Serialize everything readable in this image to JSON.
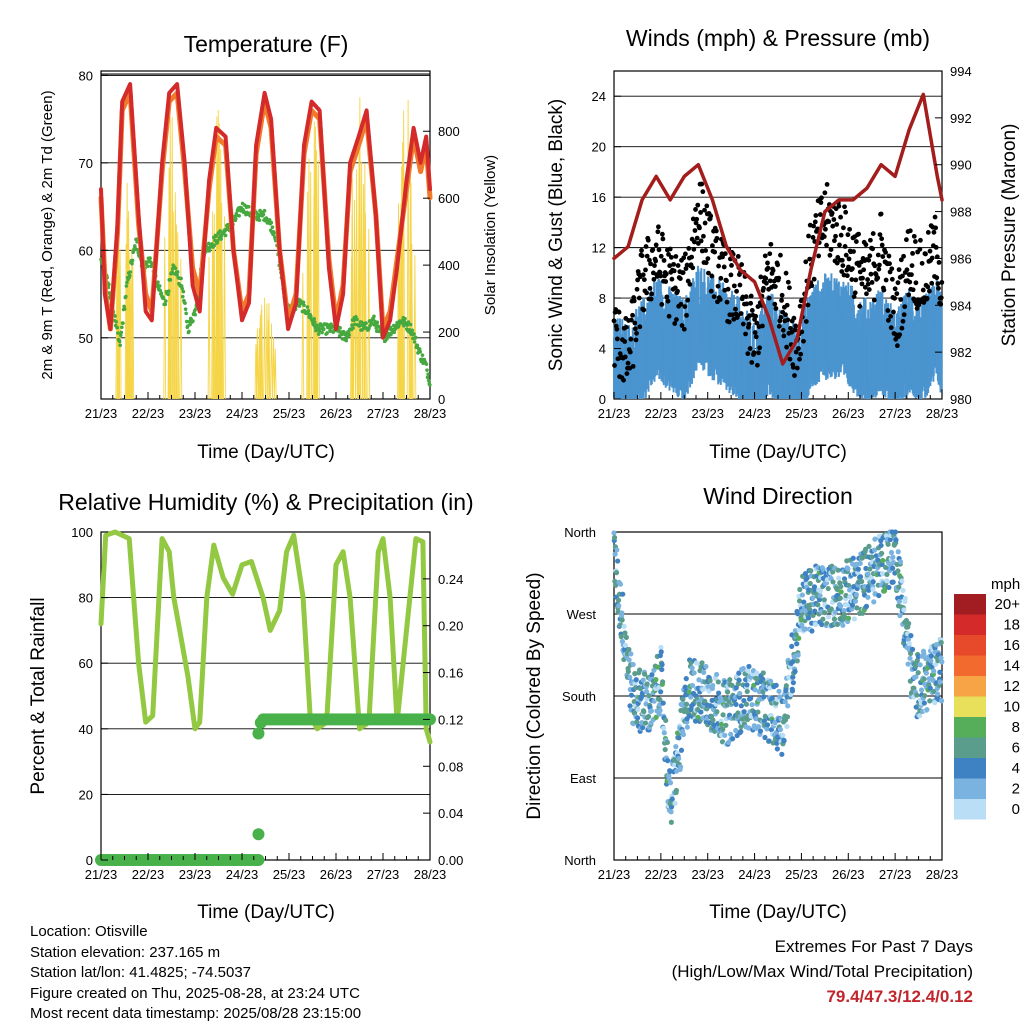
{
  "time_ticks": [
    "21/23",
    "22/23",
    "23/23",
    "24/23",
    "25/23",
    "26/23",
    "27/23",
    "28/23"
  ],
  "time_xlabel": "Time (Day/UTC)",
  "chart_data": [
    {
      "type": "line",
      "title": "Temperature (F)",
      "xlabel": "Time (Day/UTC)",
      "ylabel_left": "2m & 9m T (Red, Orange) & 2m Td (Green)",
      "ylabel_right": "Solar Insolation (Yellow)",
      "ylim_left": [
        43,
        80.5
      ],
      "yticks_left": [
        "50",
        "60",
        "70",
        "80"
      ],
      "ylim_right": [
        0,
        980
      ],
      "yticks_right": [
        "0",
        "200",
        "400",
        "600",
        "800"
      ],
      "x_unit": "days since 21/23",
      "series": [
        {
          "name": "2m T",
          "color": "#d42a2a",
          "axis": "left",
          "x": [
            0,
            0.08,
            0.2,
            0.35,
            0.45,
            0.62,
            0.8,
            0.95,
            1.08,
            1.3,
            1.45,
            1.62,
            1.78,
            1.95,
            2.1,
            2.3,
            2.45,
            2.65,
            2.82,
            3.0,
            3.15,
            3.3,
            3.48,
            3.62,
            3.8,
            3.98,
            4.15,
            4.32,
            4.48,
            4.65,
            4.85,
            5.0,
            5.15,
            5.3,
            5.48,
            5.65,
            5.85,
            6.0,
            6.15,
            6.3,
            6.5,
            6.65,
            6.8,
            6.92,
            7.0
          ],
          "y": [
            67,
            55,
            51,
            63,
            77,
            79,
            64,
            53,
            52,
            70,
            78,
            79,
            70,
            56,
            53,
            68,
            74,
            73,
            60,
            52,
            54,
            72,
            78,
            75,
            60,
            51,
            54,
            72,
            77,
            76,
            58,
            51,
            55,
            70,
            73,
            76,
            64,
            50,
            52,
            58,
            68,
            74,
            70,
            73,
            67
          ]
        },
        {
          "name": "9m T",
          "color": "#f07a2c",
          "axis": "left",
          "x": [
            0,
            0.1,
            0.2,
            0.35,
            0.45,
            0.62,
            0.8,
            0.95,
            1.08,
            1.3,
            1.45,
            1.62,
            1.78,
            1.95,
            2.1,
            2.3,
            2.45,
            2.65,
            2.82,
            3.0,
            3.15,
            3.3,
            3.48,
            3.62,
            3.8,
            3.98,
            4.15,
            4.32,
            4.48,
            4.65,
            4.85,
            5.0,
            5.15,
            5.3,
            5.48,
            5.65,
            5.85,
            6.0,
            6.15,
            6.3,
            6.5,
            6.65,
            6.8,
            6.92,
            7.0
          ],
          "y": [
            66,
            55,
            51,
            62,
            76,
            78,
            63,
            55,
            53,
            69,
            77,
            78,
            69,
            58,
            55,
            67,
            73,
            72,
            60,
            53,
            55,
            71,
            77,
            74,
            60,
            52,
            55,
            71,
            76,
            75,
            59,
            52,
            56,
            69,
            72,
            75,
            64,
            51,
            53,
            59,
            67,
            73,
            69,
            72,
            66
          ]
        },
        {
          "name": "2m Td",
          "color": "#46a940",
          "axis": "left",
          "x": [
            0,
            0.2,
            0.4,
            0.55,
            0.75,
            0.9,
            1.05,
            1.2,
            1.35,
            1.55,
            1.72,
            1.85,
            2.0,
            2.2,
            2.4,
            2.6,
            2.8,
            3.0,
            3.25,
            3.5,
            3.7,
            3.9,
            4.0,
            4.2,
            4.4,
            4.6,
            4.8,
            5.0,
            5.2,
            5.4,
            5.6,
            5.8,
            6.0,
            6.2,
            6.4,
            6.6,
            6.8,
            6.9,
            7.0
          ],
          "y": [
            59,
            55,
            49,
            56,
            61,
            58,
            59,
            56,
            54,
            58,
            56,
            51,
            53,
            60,
            61,
            62,
            63,
            65,
            64,
            64,
            62,
            55,
            53,
            54,
            53,
            51,
            51,
            51,
            50,
            52,
            51,
            52,
            50,
            51,
            52,
            51,
            48,
            47,
            45
          ]
        },
        {
          "name": "Solar Insolation",
          "color": "#f5d547",
          "axis": "right",
          "style": "thin-daily-peaks",
          "peaks": [
            [
              0.5,
              680
            ],
            [
              1.5,
              900
            ],
            [
              2.5,
              880
            ],
            [
              3.5,
              330
            ],
            [
              4.5,
              900
            ],
            [
              5.5,
              970
            ],
            [
              6.5,
              920
            ]
          ]
        }
      ]
    },
    {
      "type": "scatter",
      "title": "Winds (mph) & Pressure (mb)",
      "xlabel": "Time (Day/UTC)",
      "ylabel_left": "Sonic Wind & Gust (Blue, Black)",
      "ylabel_right": "Station Pressure (Maroon)",
      "ylim_left": [
        0,
        26
      ],
      "yticks_left": [
        "0",
        "4",
        "8",
        "12",
        "16",
        "20",
        "24"
      ],
      "ylim_right": [
        980,
        994
      ],
      "yticks_right": [
        "980",
        "982",
        "984",
        "986",
        "988",
        "990",
        "992",
        "994"
      ],
      "x_unit": "days since 21/23",
      "series": [
        {
          "name": "Sonic Wind",
          "color": "#4b94cf",
          "axis": "left",
          "style": "dense-band",
          "x": [
            0,
            0.3,
            0.6,
            0.9,
            1.2,
            1.5,
            1.8,
            2.1,
            2.4,
            2.7,
            3.0,
            3.3,
            3.6,
            3.9,
            4.2,
            4.5,
            4.8,
            5.1,
            5.4,
            5.7,
            6.0,
            6.3,
            6.6,
            6.9,
            7.0
          ],
          "y": [
            2,
            1,
            3,
            5,
            4,
            3,
            6,
            5,
            4,
            3,
            1,
            4,
            2,
            1,
            4,
            5,
            5,
            4,
            3,
            4,
            2,
            4,
            3,
            5,
            3
          ]
        },
        {
          "name": "Gust",
          "color": "#000000",
          "axis": "left",
          "style": "dense-dots",
          "x": [
            0,
            0.3,
            0.6,
            0.9,
            1.2,
            1.5,
            1.8,
            2.1,
            2.4,
            2.7,
            3.0,
            3.3,
            3.6,
            3.9,
            4.2,
            4.5,
            4.8,
            5.1,
            5.4,
            5.7,
            6.0,
            6.3,
            6.6,
            6.9,
            7.0
          ],
          "y": [
            4,
            2,
            8,
            10,
            8,
            7,
            14,
            10,
            8,
            7,
            3,
            9,
            7,
            3,
            10,
            13,
            12,
            10,
            8,
            11,
            5,
            10,
            8,
            11,
            6
          ]
        },
        {
          "name": "Station Pressure",
          "color": "#a31d1d",
          "axis": "right",
          "x": [
            0,
            0.3,
            0.6,
            0.9,
            1.2,
            1.5,
            1.8,
            2.1,
            2.4,
            2.7,
            3.0,
            3.3,
            3.6,
            3.9,
            4.2,
            4.5,
            4.8,
            5.1,
            5.4,
            5.7,
            6.0,
            6.3,
            6.6,
            6.9,
            7.0
          ],
          "y": [
            986,
            986.5,
            988.5,
            989.5,
            988.5,
            989.5,
            990,
            988.5,
            986.5,
            985.5,
            985,
            983.5,
            981.5,
            982.5,
            985.5,
            988,
            988.5,
            988.5,
            989,
            990,
            989.5,
            991.5,
            993,
            989.5,
            988.5
          ]
        }
      ]
    },
    {
      "type": "line",
      "title": "Relative Humidity (%) & Precipitation (in)",
      "xlabel": "Time (Day/UTC)",
      "ylabel_left": "Percent & Total Rainfall",
      "ylim_left": [
        0,
        100
      ],
      "yticks_left": [
        "0",
        "20",
        "40",
        "60",
        "80",
        "100"
      ],
      "ylim_right": [
        0,
        0.28
      ],
      "yticks_right": [
        "0.00",
        "0.04",
        "0.08",
        "0.12",
        "0.16",
        "0.20",
        "0.24"
      ],
      "x_unit": "days since 21/23",
      "series": [
        {
          "name": "Relative Humidity",
          "color": "#93c842",
          "axis": "left",
          "x": [
            0,
            0.1,
            0.3,
            0.6,
            0.8,
            0.95,
            1.1,
            1.3,
            1.45,
            1.55,
            1.7,
            1.85,
            2.0,
            2.1,
            2.25,
            2.4,
            2.6,
            2.8,
            3.0,
            3.2,
            3.45,
            3.6,
            3.8,
            3.95,
            4.1,
            4.3,
            4.45,
            4.6,
            4.8,
            5.0,
            5.15,
            5.3,
            5.5,
            5.7,
            5.9,
            6.0,
            6.15,
            6.3,
            6.5,
            6.7,
            6.85,
            6.92,
            7.0
          ],
          "y": [
            72,
            99,
            100,
            98,
            60,
            42,
            44,
            98,
            94,
            80,
            68,
            56,
            40,
            42,
            80,
            96,
            86,
            81,
            90,
            91,
            80,
            70,
            76,
            94,
            99,
            80,
            44,
            40,
            42,
            90,
            94,
            80,
            40,
            42,
            94,
            98,
            80,
            42,
            70,
            98,
            97,
            40,
            36
          ]
        },
        {
          "name": "Total Precipitation",
          "color": "#48b14a",
          "axis": "right",
          "x": [
            0,
            3.35,
            3.35,
            3.42,
            7.0
          ],
          "y": [
            0,
            0,
            0.11,
            0.12,
            0.12
          ]
        }
      ]
    },
    {
      "type": "scatter",
      "title": "Wind Direction",
      "xlabel": "Time (Day/UTC)",
      "ylabel": "Direction (Colored By Speed)",
      "yticks": [
        "North",
        "East",
        "South",
        "West",
        "North"
      ],
      "ylim": [
        0,
        360
      ],
      "legend_title": "mph",
      "legend_labels": [
        "20+",
        "18",
        "16",
        "14",
        "12",
        "10",
        "8",
        "6",
        "4",
        "2",
        "0"
      ],
      "legend_colors": [
        "#a11d21",
        "#d42a2a",
        "#e64a2a",
        "#f26a2d",
        "#f6a446",
        "#e8e05a",
        "#56ad5a",
        "#5b9d8d",
        "#3f82c4",
        "#7bb3e0",
        "#b9def5"
      ],
      "x_unit": "days since 21/23",
      "x": [
        0,
        0.4,
        0.8,
        1.0,
        1.2,
        1.6,
        2.0,
        2.4,
        2.8,
        3.2,
        3.6,
        4.0,
        4.4,
        4.8,
        5.2,
        5.6,
        6.0,
        6.4,
        6.8,
        7.0
      ],
      "direction": [
        330,
        180,
        170,
        200,
        60,
        190,
        180,
        160,
        180,
        170,
        150,
        280,
        290,
        290,
        300,
        320,
        340,
        190,
        200,
        210
      ]
    }
  ],
  "info": {
    "location": "Location: Otisville",
    "elevation": "Station elevation: 237.165 m",
    "latlon": "Station lat/lon: 41.4825; -74.5037",
    "created": "Figure created on Thu, 2025-08-28, at 23:24 UTC",
    "latest": "Most recent data timestamp: 2025/08/28 23:15:00"
  },
  "extremes": {
    "heading": "Extremes For Past 7 Days",
    "subheading": "(High/Low/Max Wind/Total Precipitation)",
    "values": "79.4/47.3/12.4/0.12"
  }
}
